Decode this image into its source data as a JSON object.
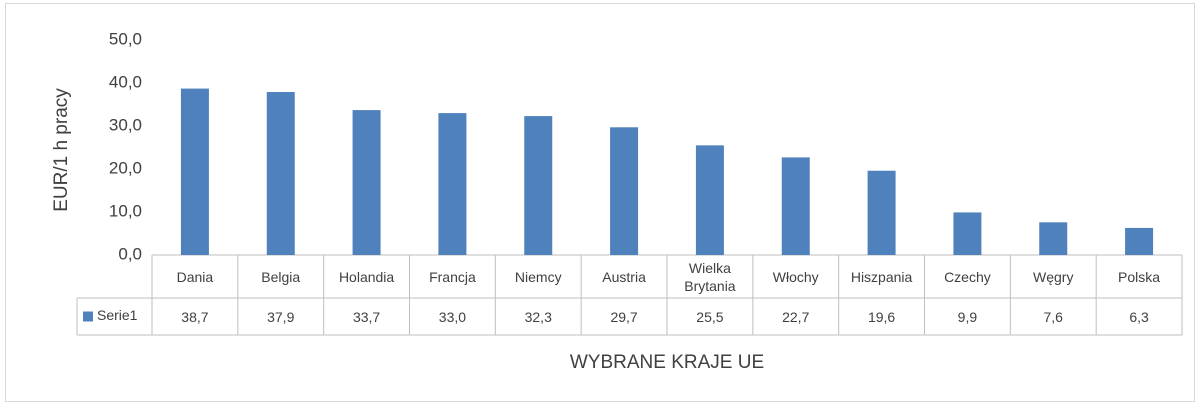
{
  "chart_data": {
    "type": "bar",
    "y_label": "EUR/1 h pracy",
    "x_label": "WYBRANE KRAJE UE",
    "categories": [
      "Dania",
      "Belgia",
      "Holandia",
      "Francja",
      "Niemcy",
      "Austria",
      "Wielka Brytania",
      "Włochy",
      "Hiszpania",
      "Czechy",
      "Węgry",
      "Polska"
    ],
    "series": [
      {
        "name": "Serie1",
        "color": "#4f81bd",
        "values": [
          38.7,
          37.9,
          33.7,
          33.0,
          32.3,
          29.7,
          25.5,
          22.7,
          19.6,
          9.9,
          7.6,
          6.3
        ],
        "value_labels": [
          "38,7",
          "37,9",
          "33,7",
          "33,0",
          "32,3",
          "29,7",
          "25,5",
          "22,7",
          "19,6",
          "9,9",
          "7,6",
          "6,3"
        ]
      }
    ],
    "ylim": [
      0,
      50
    ],
    "yticks": [
      {
        "value": 0,
        "label": "0,0"
      },
      {
        "value": 10,
        "label": "10,0"
      },
      {
        "value": 20,
        "label": "20,0"
      },
      {
        "value": 30,
        "label": "30,0"
      },
      {
        "value": 40,
        "label": "40,0"
      },
      {
        "value": 50,
        "label": "50,0"
      }
    ],
    "grid": false
  }
}
